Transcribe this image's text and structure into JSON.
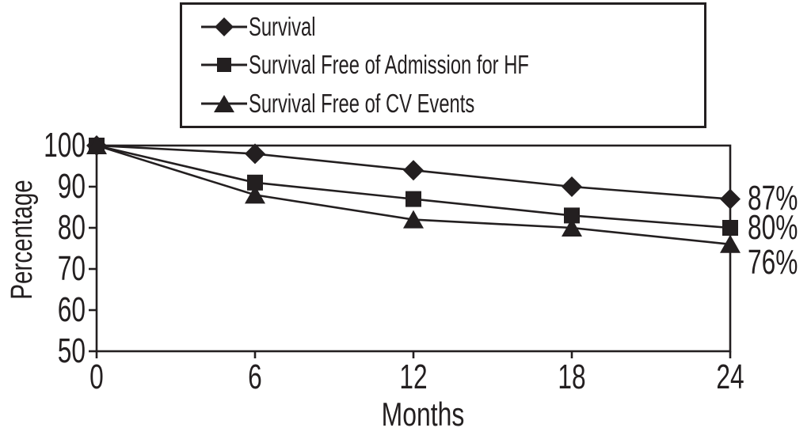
{
  "chart_data": {
    "type": "line",
    "title": "",
    "x": [
      0,
      6,
      12,
      18,
      24
    ],
    "xlabel": "Months",
    "ylabel": "Percentage",
    "xticks": [
      0,
      6,
      12,
      18,
      24
    ],
    "yticks": [
      50,
      60,
      70,
      80,
      90,
      100
    ],
    "xlim": [
      0,
      24
    ],
    "ylim": [
      50,
      100
    ],
    "grid": false,
    "legend_position": "top-center",
    "line_color": "#231f20",
    "background_color": "#ffffff",
    "series": [
      {
        "name": "Survival",
        "marker": "diamond",
        "values": [
          100,
          98,
          94,
          90,
          87
        ],
        "end_label": "87%"
      },
      {
        "name": "Survival Free of Admission for HF",
        "marker": "square",
        "values": [
          100,
          91,
          87,
          83,
          80
        ],
        "end_label": "80%"
      },
      {
        "name": "Survival Free of CV Events",
        "marker": "triangle",
        "values": [
          100,
          88,
          82,
          80,
          76
        ],
        "end_label": "76%"
      }
    ]
  }
}
